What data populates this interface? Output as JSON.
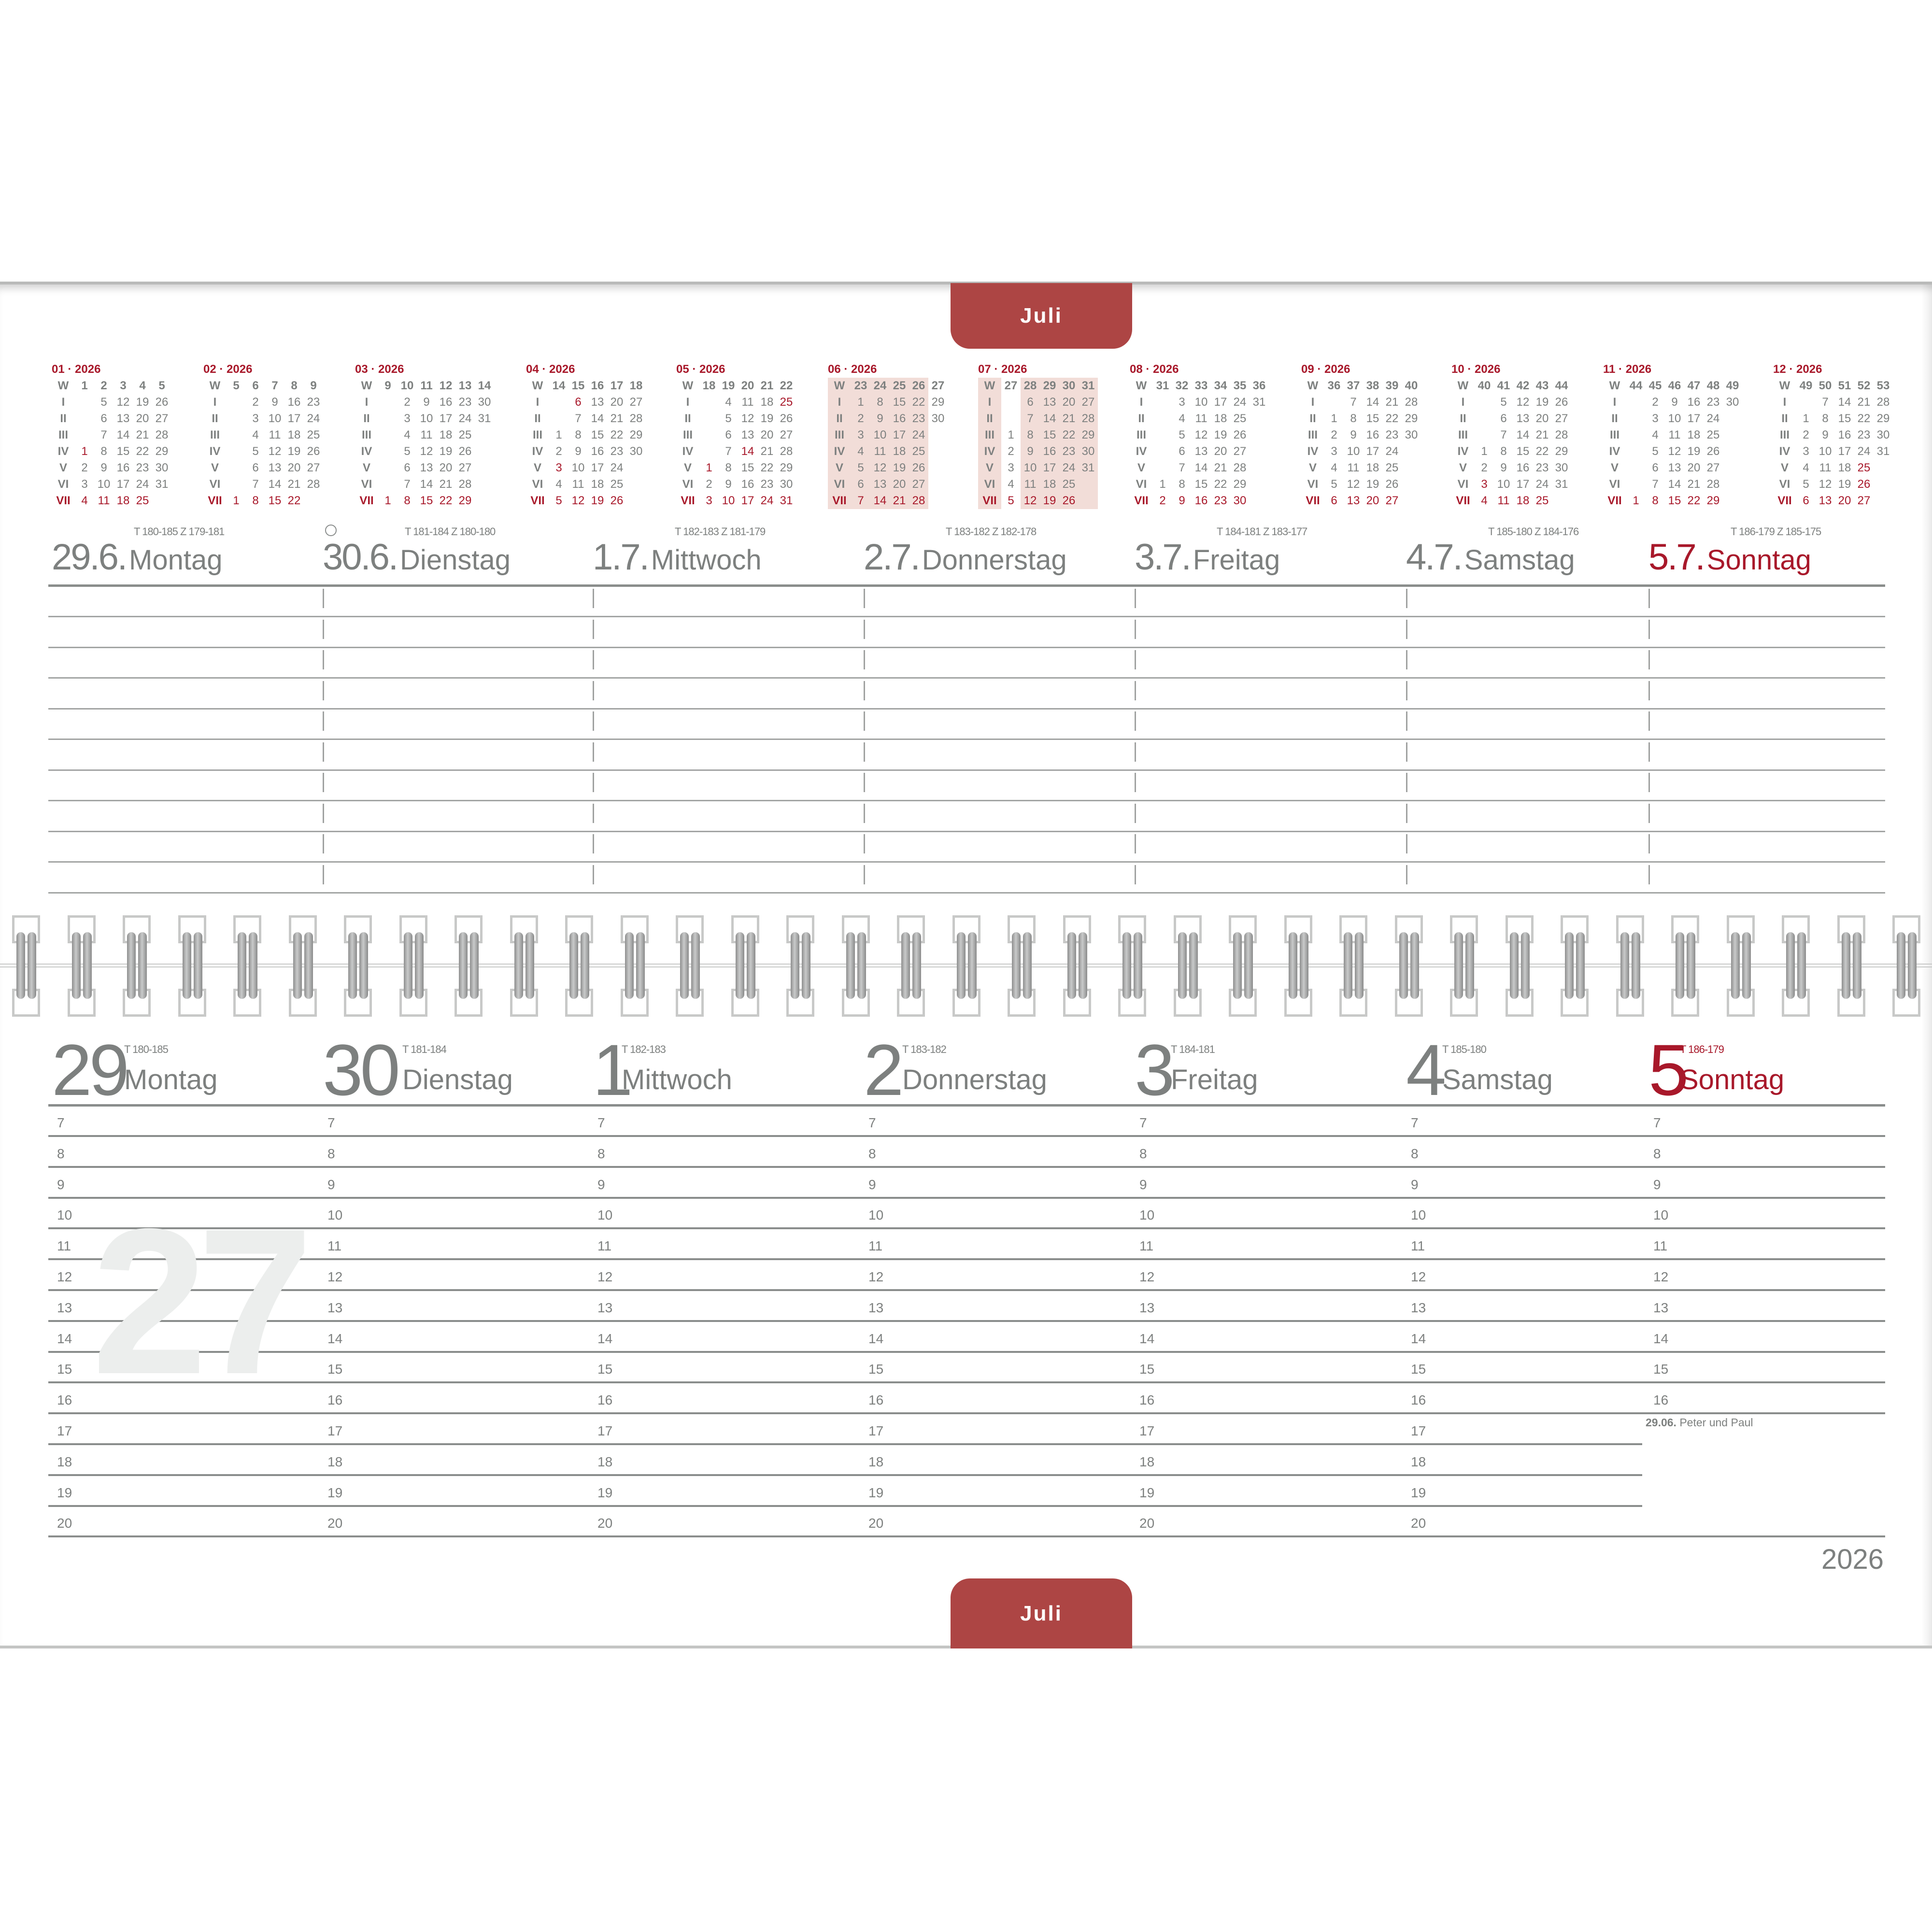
{
  "colors": {
    "accent": "#ad4544",
    "red_text": "#a8182a",
    "gray_text": "#7d807f",
    "week_highlight": "#f2ddd8"
  },
  "tab_top": "Juli",
  "tab_bottom": "Juli",
  "year": "2026",
  "watermark_week": "27",
  "months": [
    {
      "title": "01 · 2026",
      "w": "W",
      "weeks": [
        "1",
        "2",
        "3",
        "4",
        "5"
      ],
      "rows": [
        {
          "l": "I",
          "cells": [
            "",
            "5",
            "12",
            "19",
            "26"
          ]
        },
        {
          "l": "II",
          "cells": [
            "",
            "6",
            "13",
            "20",
            "27"
          ]
        },
        {
          "l": "III",
          "cells": [
            "",
            "7",
            "14",
            "21",
            "28"
          ]
        },
        {
          "l": "IV",
          "cells": [
            "1",
            "8",
            "15",
            "22",
            "29"
          ]
        },
        {
          "l": "V",
          "cells": [
            "2",
            "9",
            "16",
            "23",
            "30"
          ]
        },
        {
          "l": "VI",
          "cells": [
            "3",
            "10",
            "17",
            "24",
            "31"
          ]
        },
        {
          "l": "VII",
          "cells": [
            "4",
            "11",
            "18",
            "25",
            ""
          ]
        }
      ],
      "red": [
        "3-0"
      ],
      "highlight": []
    },
    {
      "title": "02 · 2026",
      "w": "W",
      "weeks": [
        "5",
        "6",
        "7",
        "8",
        "9"
      ],
      "rows": [
        {
          "l": "I",
          "cells": [
            "",
            "2",
            "9",
            "16",
            "23"
          ]
        },
        {
          "l": "II",
          "cells": [
            "",
            "3",
            "10",
            "17",
            "24"
          ]
        },
        {
          "l": "III",
          "cells": [
            "",
            "4",
            "11",
            "18",
            "25"
          ]
        },
        {
          "l": "IV",
          "cells": [
            "",
            "5",
            "12",
            "19",
            "26"
          ]
        },
        {
          "l": "V",
          "cells": [
            "",
            "6",
            "13",
            "20",
            "27"
          ]
        },
        {
          "l": "VI",
          "cells": [
            "",
            "7",
            "14",
            "21",
            "28"
          ]
        },
        {
          "l": "VII",
          "cells": [
            "1",
            "8",
            "15",
            "22",
            ""
          ]
        }
      ],
      "red": [],
      "highlight": []
    },
    {
      "title": "03 · 2026",
      "w": "W",
      "weeks": [
        "9",
        "10",
        "11",
        "12",
        "13",
        "14"
      ],
      "rows": [
        {
          "l": "I",
          "cells": [
            "",
            "2",
            "9",
            "16",
            "23",
            "30"
          ]
        },
        {
          "l": "II",
          "cells": [
            "",
            "3",
            "10",
            "17",
            "24",
            "31"
          ]
        },
        {
          "l": "III",
          "cells": [
            "",
            "4",
            "11",
            "18",
            "25",
            ""
          ]
        },
        {
          "l": "IV",
          "cells": [
            "",
            "5",
            "12",
            "19",
            "26",
            ""
          ]
        },
        {
          "l": "V",
          "cells": [
            "",
            "6",
            "13",
            "20",
            "27",
            ""
          ]
        },
        {
          "l": "VI",
          "cells": [
            "",
            "7",
            "14",
            "21",
            "28",
            ""
          ]
        },
        {
          "l": "VII",
          "cells": [
            "1",
            "8",
            "15",
            "22",
            "29",
            ""
          ]
        }
      ],
      "red": [],
      "highlight": []
    },
    {
      "title": "04 · 2026",
      "w": "W",
      "weeks": [
        "14",
        "15",
        "16",
        "17",
        "18"
      ],
      "rows": [
        {
          "l": "I",
          "cells": [
            "",
            "6",
            "13",
            "20",
            "27"
          ]
        },
        {
          "l": "II",
          "cells": [
            "",
            "7",
            "14",
            "21",
            "28"
          ]
        },
        {
          "l": "III",
          "cells": [
            "1",
            "8",
            "15",
            "22",
            "29"
          ]
        },
        {
          "l": "IV",
          "cells": [
            "2",
            "9",
            "16",
            "23",
            "30"
          ]
        },
        {
          "l": "V",
          "cells": [
            "3",
            "10",
            "17",
            "24",
            ""
          ]
        },
        {
          "l": "VI",
          "cells": [
            "4",
            "11",
            "18",
            "25",
            ""
          ]
        },
        {
          "l": "VII",
          "cells": [
            "5",
            "12",
            "19",
            "26",
            ""
          ]
        }
      ],
      "red": [
        "0-1",
        "4-0"
      ],
      "highlight": []
    },
    {
      "title": "05 · 2026",
      "w": "W",
      "weeks": [
        "18",
        "19",
        "20",
        "21",
        "22"
      ],
      "rows": [
        {
          "l": "I",
          "cells": [
            "",
            "4",
            "11",
            "18",
            "25"
          ]
        },
        {
          "l": "II",
          "cells": [
            "",
            "5",
            "12",
            "19",
            "26"
          ]
        },
        {
          "l": "III",
          "cells": [
            "",
            "6",
            "13",
            "20",
            "27"
          ]
        },
        {
          "l": "IV",
          "cells": [
            "",
            "7",
            "14",
            "21",
            "28"
          ]
        },
        {
          "l": "V",
          "cells": [
            "1",
            "8",
            "15",
            "22",
            "29"
          ]
        },
        {
          "l": "VI",
          "cells": [
            "2",
            "9",
            "16",
            "23",
            "30"
          ]
        },
        {
          "l": "VII",
          "cells": [
            "3",
            "10",
            "17",
            "24",
            "31"
          ]
        }
      ],
      "red": [
        "0-4",
        "3-2",
        "4-0"
      ],
      "highlight": []
    },
    {
      "title": "06 · 2026",
      "w": "W",
      "weeks": [
        "23",
        "24",
        "25",
        "26",
        "27"
      ],
      "rows": [
        {
          "l": "I",
          "cells": [
            "1",
            "8",
            "15",
            "22",
            "29"
          ]
        },
        {
          "l": "II",
          "cells": [
            "2",
            "9",
            "16",
            "23",
            "30"
          ]
        },
        {
          "l": "III",
          "cells": [
            "3",
            "10",
            "17",
            "24",
            ""
          ]
        },
        {
          "l": "IV",
          "cells": [
            "4",
            "11",
            "18",
            "25",
            ""
          ]
        },
        {
          "l": "V",
          "cells": [
            "5",
            "12",
            "19",
            "26",
            ""
          ]
        },
        {
          "l": "VI",
          "cells": [
            "6",
            "13",
            "20",
            "27",
            ""
          ]
        },
        {
          "l": "VII",
          "cells": [
            "7",
            "14",
            "21",
            "28",
            ""
          ]
        }
      ],
      "red": [],
      "highlight": [
        "w",
        0,
        1,
        2,
        3
      ]
    },
    {
      "title": "07 · 2026",
      "w": "W",
      "weeks": [
        "27",
        "28",
        "29",
        "30",
        "31"
      ],
      "rows": [
        {
          "l": "I",
          "cells": [
            "",
            "6",
            "13",
            "20",
            "27"
          ]
        },
        {
          "l": "II",
          "cells": [
            "",
            "7",
            "14",
            "21",
            "28"
          ]
        },
        {
          "l": "III",
          "cells": [
            "1",
            "8",
            "15",
            "22",
            "29"
          ]
        },
        {
          "l": "IV",
          "cells": [
            "2",
            "9",
            "16",
            "23",
            "30"
          ]
        },
        {
          "l": "V",
          "cells": [
            "3",
            "10",
            "17",
            "24",
            "31"
          ]
        },
        {
          "l": "VI",
          "cells": [
            "4",
            "11",
            "18",
            "25",
            ""
          ]
        },
        {
          "l": "VII",
          "cells": [
            "5",
            "12",
            "19",
            "26",
            ""
          ]
        }
      ],
      "red": [],
      "highlight": [
        "w",
        1,
        2,
        3,
        4
      ]
    },
    {
      "title": "08 · 2026",
      "w": "W",
      "weeks": [
        "31",
        "32",
        "33",
        "34",
        "35",
        "36"
      ],
      "rows": [
        {
          "l": "I",
          "cells": [
            "",
            "3",
            "10",
            "17",
            "24",
            "31"
          ]
        },
        {
          "l": "II",
          "cells": [
            "",
            "4",
            "11",
            "18",
            "25",
            ""
          ]
        },
        {
          "l": "III",
          "cells": [
            "",
            "5",
            "12",
            "19",
            "26",
            ""
          ]
        },
        {
          "l": "IV",
          "cells": [
            "",
            "6",
            "13",
            "20",
            "27",
            ""
          ]
        },
        {
          "l": "V",
          "cells": [
            "",
            "7",
            "14",
            "21",
            "28",
            ""
          ]
        },
        {
          "l": "VI",
          "cells": [
            "1",
            "8",
            "15",
            "22",
            "29",
            ""
          ]
        },
        {
          "l": "VII",
          "cells": [
            "2",
            "9",
            "16",
            "23",
            "30",
            ""
          ]
        }
      ],
      "red": [],
      "highlight": []
    },
    {
      "title": "09 · 2026",
      "w": "W",
      "weeks": [
        "36",
        "37",
        "38",
        "39",
        "40"
      ],
      "rows": [
        {
          "l": "I",
          "cells": [
            "",
            "7",
            "14",
            "21",
            "28"
          ]
        },
        {
          "l": "II",
          "cells": [
            "1",
            "8",
            "15",
            "22",
            "29"
          ]
        },
        {
          "l": "III",
          "cells": [
            "2",
            "9",
            "16",
            "23",
            "30"
          ]
        },
        {
          "l": "IV",
          "cells": [
            "3",
            "10",
            "17",
            "24",
            ""
          ]
        },
        {
          "l": "V",
          "cells": [
            "4",
            "11",
            "18",
            "25",
            ""
          ]
        },
        {
          "l": "VI",
          "cells": [
            "5",
            "12",
            "19",
            "26",
            ""
          ]
        },
        {
          "l": "VII",
          "cells": [
            "6",
            "13",
            "20",
            "27",
            ""
          ]
        }
      ],
      "red": [],
      "highlight": []
    },
    {
      "title": "10 · 2026",
      "w": "W",
      "weeks": [
        "40",
        "41",
        "42",
        "43",
        "44"
      ],
      "rows": [
        {
          "l": "I",
          "cells": [
            "",
            "5",
            "12",
            "19",
            "26"
          ]
        },
        {
          "l": "II",
          "cells": [
            "",
            "6",
            "13",
            "20",
            "27"
          ]
        },
        {
          "l": "III",
          "cells": [
            "",
            "7",
            "14",
            "21",
            "28"
          ]
        },
        {
          "l": "IV",
          "cells": [
            "1",
            "8",
            "15",
            "22",
            "29"
          ]
        },
        {
          "l": "V",
          "cells": [
            "2",
            "9",
            "16",
            "23",
            "30"
          ]
        },
        {
          "l": "VI",
          "cells": [
            "3",
            "10",
            "17",
            "24",
            "31"
          ]
        },
        {
          "l": "VII",
          "cells": [
            "4",
            "11",
            "18",
            "25",
            ""
          ]
        }
      ],
      "red": [
        "5-0"
      ],
      "highlight": []
    },
    {
      "title": "11 · 2026",
      "w": "W",
      "weeks": [
        "44",
        "45",
        "46",
        "47",
        "48",
        "49"
      ],
      "rows": [
        {
          "l": "I",
          "cells": [
            "",
            "2",
            "9",
            "16",
            "23",
            "30"
          ]
        },
        {
          "l": "II",
          "cells": [
            "",
            "3",
            "10",
            "17",
            "24",
            ""
          ]
        },
        {
          "l": "III",
          "cells": [
            "",
            "4",
            "11",
            "18",
            "25",
            ""
          ]
        },
        {
          "l": "IV",
          "cells": [
            "",
            "5",
            "12",
            "19",
            "26",
            ""
          ]
        },
        {
          "l": "V",
          "cells": [
            "",
            "6",
            "13",
            "20",
            "27",
            ""
          ]
        },
        {
          "l": "VI",
          "cells": [
            "",
            "7",
            "14",
            "21",
            "28",
            ""
          ]
        },
        {
          "l": "VII",
          "cells": [
            "1",
            "8",
            "15",
            "22",
            "29",
            ""
          ]
        }
      ],
      "red": [],
      "highlight": []
    },
    {
      "title": "12 · 2026",
      "w": "W",
      "weeks": [
        "49",
        "50",
        "51",
        "52",
        "53"
      ],
      "rows": [
        {
          "l": "I",
          "cells": [
            "",
            "7",
            "14",
            "21",
            "28"
          ]
        },
        {
          "l": "II",
          "cells": [
            "1",
            "8",
            "15",
            "22",
            "29"
          ]
        },
        {
          "l": "III",
          "cells": [
            "2",
            "9",
            "16",
            "23",
            "30"
          ]
        },
        {
          "l": "IV",
          "cells": [
            "3",
            "10",
            "17",
            "24",
            "31"
          ]
        },
        {
          "l": "V",
          "cells": [
            "4",
            "11",
            "18",
            "25",
            ""
          ]
        },
        {
          "l": "VI",
          "cells": [
            "5",
            "12",
            "19",
            "26",
            ""
          ]
        },
        {
          "l": "VII",
          "cells": [
            "6",
            "13",
            "20",
            "27",
            ""
          ]
        }
      ],
      "red": [
        "4-3",
        "5-3"
      ],
      "highlight": []
    }
  ],
  "days": [
    {
      "date": "29.6.",
      "weekday": "Montag",
      "t_info": "T 180-185  Z 179-181",
      "num": "29",
      "t_short": "T 180-185",
      "sunday": false,
      "moon_icon": null
    },
    {
      "date": "30.6.",
      "weekday": "Dienstag",
      "t_info": "T 181-184  Z 180-180",
      "num": "30",
      "t_short": "T 181-184",
      "sunday": false,
      "moon_icon": "new-moon"
    },
    {
      "date": "1.7.",
      "weekday": "Mittwoch",
      "t_info": "T 182-183  Z 181-179",
      "num": "1",
      "t_short": "T 182-183",
      "sunday": false,
      "moon_icon": null
    },
    {
      "date": "2.7.",
      "weekday": "Donnerstag",
      "t_info": "T 183-182  Z 182-178",
      "num": "2",
      "t_short": "T 183-182",
      "sunday": false,
      "moon_icon": null
    },
    {
      "date": "3.7.",
      "weekday": "Freitag",
      "t_info": "T 184-181  Z 183-177",
      "num": "3",
      "t_short": "T 184-181",
      "sunday": false,
      "moon_icon": null
    },
    {
      "date": "4.7.",
      "weekday": "Samstag",
      "t_info": "T 185-180  Z 184-176",
      "num": "4",
      "t_short": "T 185-180",
      "sunday": false,
      "moon_icon": null
    },
    {
      "date": "5.7.",
      "weekday": "Sonntag",
      "t_info": "T 186-179  Z 185-175",
      "num": "5",
      "t_short": "T 186-179",
      "sunday": true,
      "moon_icon": null
    }
  ],
  "hours": [
    "7",
    "8",
    "9",
    "10",
    "11",
    "12",
    "13",
    "14",
    "15",
    "16",
    "17",
    "18",
    "19",
    "20"
  ],
  "sunday_hours": [
    "7",
    "8",
    "9",
    "10",
    "11",
    "12",
    "13",
    "14",
    "15",
    "16"
  ],
  "holiday_note": {
    "date": "29.06.",
    "name": "Peter und Paul"
  }
}
